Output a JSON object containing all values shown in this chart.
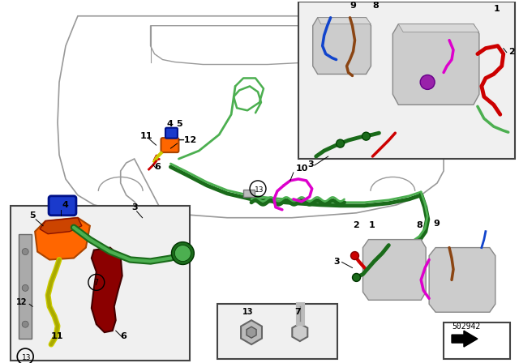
{
  "bg_color": "#ffffff",
  "part_number": "502942",
  "green_dark": "#1a6b1a",
  "green_light": "#4caf50",
  "red": "#cc0000",
  "magenta": "#dd00cc",
  "blue": "#1144cc",
  "brown": "#8B4513",
  "orange": "#FF6600",
  "yellow_green": "#aacc00",
  "blue_part": "#1a3acc",
  "dark_red": "#8B0000",
  "silver": "#aaaaaa",
  "gray": "#888888",
  "purple": "#9922aa",
  "car_line": "#999999",
  "box_bg": "#f0f0f0",
  "box_edge": "#444444",
  "battery_face": "#cccccc",
  "battery_edge": "#888888",
  "lfs": 8,
  "lfw": "bold"
}
